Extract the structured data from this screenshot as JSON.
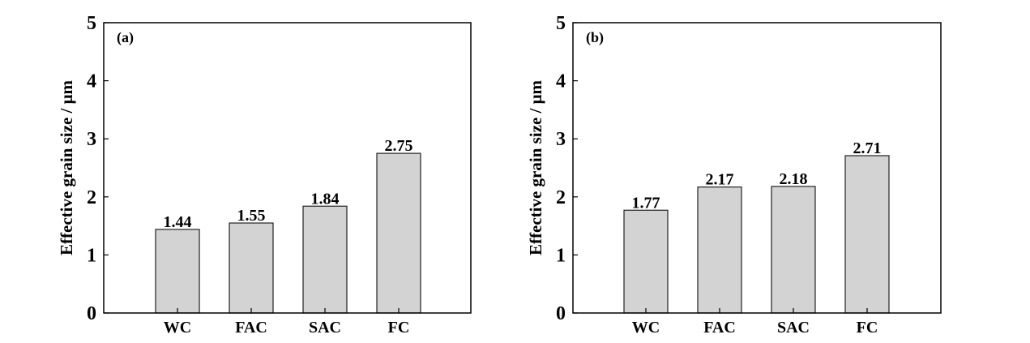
{
  "chart_data": [
    {
      "type": "bar",
      "panel_label": "(a)",
      "categories": [
        "WC",
        "FAC",
        "SAC",
        "FC"
      ],
      "values": [
        1.44,
        1.55,
        1.84,
        2.75
      ],
      "data_labels": [
        "1.44",
        "1.55",
        "1.84",
        "2.75"
      ],
      "xlabel": "",
      "ylabel": "Effective grain size / μm",
      "ylim": [
        0,
        5
      ],
      "yticks": [
        "0",
        "1",
        "2",
        "3",
        "4",
        "5"
      ],
      "bar_color": "#d3d3d3",
      "grid": false
    },
    {
      "type": "bar",
      "panel_label": "(b)",
      "categories": [
        "WC",
        "FAC",
        "SAC",
        "FC"
      ],
      "values": [
        1.77,
        2.17,
        2.18,
        2.71
      ],
      "data_labels": [
        "1.77",
        "2.17",
        "2.18",
        "2.71"
      ],
      "xlabel": "",
      "ylabel": "Effective grain size / μm",
      "ylim": [
        0,
        5
      ],
      "yticks": [
        "0",
        "1",
        "2",
        "3",
        "4",
        "5"
      ],
      "bar_color": "#d3d3d3",
      "grid": false
    }
  ]
}
